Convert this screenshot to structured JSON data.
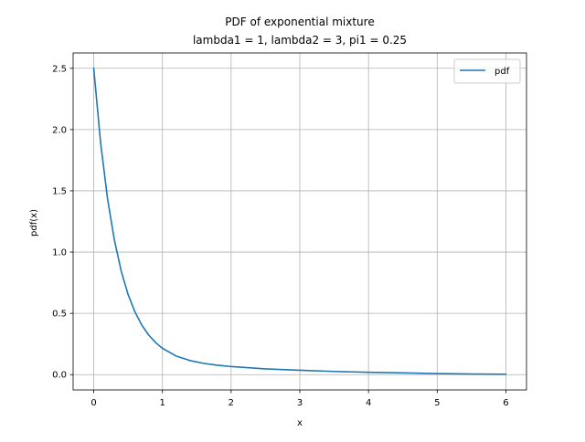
{
  "chart_data": {
    "type": "line",
    "title": "PDF of exponential mixture",
    "subtitle": "lambda1 = 1, lambda2 = 3, pi1 = 0.25",
    "xlabel": "x",
    "ylabel": "pdf(x)",
    "xlim": [
      -0.3,
      6.3
    ],
    "ylim": [
      -0.125,
      2.625
    ],
    "xticks": [
      0,
      1,
      2,
      3,
      4,
      5,
      6
    ],
    "xtick_labels": [
      "0",
      "1",
      "2",
      "3",
      "4",
      "5",
      "6"
    ],
    "yticks": [
      0.0,
      0.5,
      1.0,
      1.5,
      2.0,
      2.5
    ],
    "ytick_labels": [
      "0.0",
      "0.5",
      "1.0",
      "1.5",
      "2.0",
      "2.5"
    ],
    "grid": true,
    "legend_position": "top-right",
    "series": [
      {
        "name": "pdf",
        "color": "#1f77b4",
        "x": [
          0,
          0.1,
          0.2,
          0.3,
          0.4,
          0.5,
          0.6,
          0.7,
          0.8,
          0.9,
          1.0,
          1.2,
          1.4,
          1.6,
          1.8,
          2.0,
          2.5,
          3.0,
          3.5,
          4.0,
          4.5,
          5.0,
          5.5,
          6.0
        ],
        "y": [
          2.5,
          1.893,
          1.439,
          1.1,
          0.845,
          0.654,
          0.512,
          0.404,
          0.323,
          0.262,
          0.215,
          0.152,
          0.115,
          0.092,
          0.077,
          0.066,
          0.047,
          0.036,
          0.026,
          0.019,
          0.014,
          0.0085,
          0.0051,
          0.0031
        ]
      }
    ]
  }
}
